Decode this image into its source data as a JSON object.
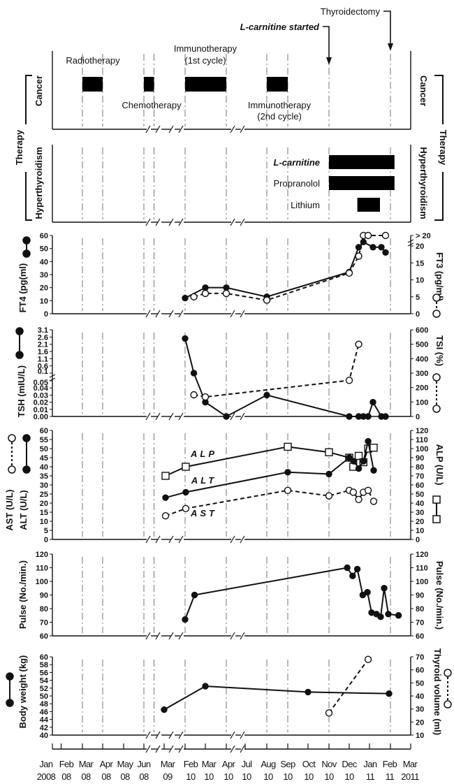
{
  "chart_data": {
    "type": "line",
    "x_axis": {
      "ticks": [
        {
          "key": "2008-01",
          "line1": "Jan",
          "line2": "2008"
        },
        {
          "key": "2008-02",
          "line1": "Feb",
          "line2": "08"
        },
        {
          "key": "2008-03",
          "line1": "Mar",
          "line2": "08"
        },
        {
          "key": "2008-04",
          "line1": "Apr",
          "line2": "08"
        },
        {
          "key": "2008-05",
          "line1": "May",
          "line2": "08"
        },
        {
          "key": "2008-06",
          "line1": "Jun",
          "line2": "08"
        },
        {
          "key": "2009-03",
          "line1": "Mar",
          "line2": "09"
        },
        {
          "key": "2010-02",
          "line1": "Feb",
          "line2": "10"
        },
        {
          "key": "2010-03",
          "line1": "Mar",
          "line2": "10"
        },
        {
          "key": "2010-04",
          "line1": "Apr",
          "line2": "10"
        },
        {
          "key": "2010-07",
          "line1": "Jul",
          "line2": "10"
        },
        {
          "key": "2010-08",
          "line1": "Aug",
          "line2": "10"
        },
        {
          "key": "2010-09",
          "line1": "Sep",
          "line2": "10"
        },
        {
          "key": "2010-10",
          "line1": "Oct",
          "line2": "10"
        },
        {
          "key": "2010-11",
          "line1": "Nov",
          "line2": "10"
        },
        {
          "key": "2010-12",
          "line1": "Dec",
          "line2": "10"
        },
        {
          "key": "2011-01",
          "line1": "Jan",
          "line2": "11"
        },
        {
          "key": "2011-02",
          "line1": "Feb",
          "line2": "11"
        },
        {
          "key": "2011-03",
          "line1": "Mar",
          "line2": "2011"
        }
      ],
      "axis_breaks": [
        "between Jun 08 and Mar 09",
        "between Mar 09 and Feb 10",
        "between Apr 10 and Jul 10"
      ]
    },
    "reference_dates": [
      "2008-03-01",
      "2008-04-01",
      "2008-06-01",
      "2008-06-16",
      "2010-02-01",
      "2010-04-01",
      "2010-08-01",
      "2010-09-01",
      "2010-11-01",
      "2011-02-01"
    ],
    "events": [
      {
        "label": "L-carnitine started",
        "date": "2010-11-01"
      },
      {
        "label": "Thyroidectomy",
        "date": "2011-02-01"
      }
    ],
    "therapy": {
      "group_label": "Therapy",
      "cancer": {
        "label": "Cancer",
        "bars": [
          {
            "label": "Radiotherapy",
            "start": "2008-03-01",
            "end": "2008-04-01"
          },
          {
            "label": "Chemotherapy",
            "start": "2008-06-01",
            "end": "2008-06-16"
          },
          {
            "label": "Immunotherapy",
            "label2": "(1st cycle)",
            "start": "2010-02-01",
            "end": "2010-04-01"
          },
          {
            "label": "Immunotherapy",
            "label2": "(2nd cycle)",
            "start": "2010-08-01",
            "end": "2010-09-01"
          }
        ]
      },
      "hyperthyroidism": {
        "label": "Hyperthyroidism",
        "bars": [
          {
            "label": "L-carnitine",
            "start": "2010-11-01",
            "end": "2011-02-07"
          },
          {
            "label": "Propranolol",
            "start": "2010-11-01",
            "end": "2011-02-07"
          },
          {
            "label": "Lithium",
            "start": "2010-12-13",
            "end": "2011-01-16"
          }
        ]
      }
    },
    "panels": [
      {
        "id": "ft4",
        "left_label": "FT4 (pg(ml)",
        "right_label": "FT3 (pg/ml)",
        "left_ticks": [
          "0",
          "10",
          "20",
          "30",
          "40",
          "50",
          "60"
        ],
        "right_ticks": [
          "0",
          "5",
          "10",
          "15",
          "20",
          "> 20"
        ],
        "ylim_left": [
          0,
          60
        ],
        "ylim_right": [
          0,
          20
        ],
        "series": [
          {
            "axis": "left",
            "style": "solid-filled",
            "points": [
              [
                "2010-02-01",
                12
              ],
              [
                "2010-03-01",
                20
              ],
              [
                "2010-04-01",
                20
              ],
              [
                "2010-08-01",
                13
              ],
              [
                "2010-12-01",
                32
              ],
              [
                "2010-12-15",
                51
              ],
              [
                "2010-12-22",
                55
              ],
              [
                "2011-01-06",
                51
              ],
              [
                "2011-01-18",
                51
              ],
              [
                "2011-01-24",
                47
              ]
            ]
          },
          {
            "axis": "right",
            "style": "dashed-open",
            "points": [
              [
                "2010-02-14",
                5
              ],
              [
                "2010-03-01",
                6
              ],
              [
                "2010-04-01",
                6
              ],
              [
                "2010-08-01",
                4
              ],
              [
                "2010-12-01",
                12
              ],
              [
                "2010-12-15",
                17
              ],
              [
                "2010-12-22",
                "> 20"
              ],
              [
                "2010-12-29",
                "> 20"
              ],
              [
                "2011-01-24",
                "> 20"
              ]
            ]
          }
        ]
      },
      {
        "id": "tsh",
        "left_label": "TSH (mIU/L)",
        "right_label": "TSI (%)",
        "left_ticks": [
          "0.00",
          "0.01",
          "0.02",
          "0.03",
          "0.04",
          "0.05",
          "0.1",
          "0.6",
          "1.1",
          "1.6",
          "2.1",
          "2.6",
          "3.1"
        ],
        "right_ticks": [
          "0",
          "100",
          "200",
          "300",
          "400",
          "500",
          "600"
        ],
        "ylim_left": [
          0,
          3.1
        ],
        "left_axis_break": [
          0.05,
          0.1
        ],
        "ylim_right": [
          0,
          600
        ],
        "series": [
          {
            "axis": "left",
            "style": "solid-filled",
            "points": [
              [
                "2010-02-01",
                2.5
              ],
              [
                "2010-02-14",
                0.1
              ],
              [
                "2010-03-01",
                0.02
              ],
              [
                "2010-04-01",
                0
              ],
              [
                "2010-08-01",
                0.03
              ],
              [
                "2010-12-01",
                0
              ],
              [
                "2010-12-15",
                0
              ],
              [
                "2010-12-22",
                0
              ],
              [
                "2010-12-29",
                0
              ],
              [
                "2011-01-06",
                0.02
              ],
              [
                "2011-01-18",
                0
              ],
              [
                "2011-01-24",
                0
              ]
            ]
          },
          {
            "axis": "right",
            "style": "dashed-open",
            "points": [
              [
                "2010-02-14",
                150
              ],
              [
                "2010-03-01",
                135
              ],
              [
                "2010-12-01",
                250
              ],
              [
                "2010-12-15",
                500
              ]
            ]
          }
        ]
      },
      {
        "id": "liver",
        "left_label": "ALT  (U/L)",
        "left_label2": "AST  (U/L)",
        "right_label": "ALP (U/L)",
        "left_ticks": [
          "0",
          "5",
          "10",
          "15",
          "20",
          "25",
          "30",
          "35",
          "40",
          "45",
          "50",
          "55",
          "60"
        ],
        "right_ticks": [
          "0",
          "10",
          "20",
          "30",
          "40",
          "50",
          "60",
          "70",
          "80",
          "90",
          "100",
          "110",
          "120"
        ],
        "ylim_left": [
          0,
          60
        ],
        "ylim_right": [
          0,
          120
        ],
        "series": [
          {
            "name": "ALP",
            "axis": "right",
            "style": "solid-square",
            "points": [
              [
                "2009-03-03",
                70
              ],
              [
                "2010-02-02",
                80
              ],
              [
                "2010-09-01",
                102
              ],
              [
                "2010-11-01",
                96
              ],
              [
                "2010-12-01",
                90
              ],
              [
                "2010-12-07",
                80
              ],
              [
                "2010-12-15",
                92
              ],
              [
                "2010-12-22",
                85
              ],
              [
                "2010-12-29",
                100
              ],
              [
                "2011-01-07",
                101
              ]
            ]
          },
          {
            "name": "ALT",
            "axis": "left",
            "style": "solid-filled",
            "points": [
              [
                "2009-03-03",
                23
              ],
              [
                "2010-02-02",
                26
              ],
              [
                "2010-09-01",
                37
              ],
              [
                "2010-11-01",
                36
              ],
              [
                "2010-12-01",
                45
              ],
              [
                "2010-12-08",
                43
              ],
              [
                "2010-12-15",
                39
              ],
              [
                "2010-12-22",
                43
              ],
              [
                "2010-12-29",
                54
              ],
              [
                "2011-01-07",
                38
              ]
            ]
          },
          {
            "name": "AST",
            "axis": "left",
            "style": "dashed-open",
            "points": [
              [
                "2009-03-03",
                13
              ],
              [
                "2010-02-02",
                17
              ],
              [
                "2010-09-01",
                27
              ],
              [
                "2010-11-01",
                24
              ],
              [
                "2010-12-01",
                27
              ],
              [
                "2010-12-07",
                26
              ],
              [
                "2010-12-15",
                22
              ],
              [
                "2010-12-22",
                26
              ],
              [
                "2010-12-29",
                27
              ],
              [
                "2011-01-07",
                21
              ]
            ]
          }
        ]
      },
      {
        "id": "pulse",
        "left_label": "Pulse (No./min.)",
        "right_label": "Pulse (No./min.)",
        "left_ticks": [
          "60",
          "70",
          "80",
          "90",
          "100",
          "110",
          "120"
        ],
        "right_ticks": [
          "60",
          "70",
          "80",
          "90",
          "100",
          "110",
          "120"
        ],
        "ylim_left": [
          60,
          120
        ],
        "ylim_right": [
          60,
          120
        ],
        "series": [
          {
            "axis": "left",
            "style": "solid-filled",
            "points": [
              [
                "2010-02-01",
                72
              ],
              [
                "2010-02-15",
                90
              ],
              [
                "2010-11-28",
                110
              ],
              [
                "2010-12-06",
                104
              ],
              [
                "2010-12-13",
                109
              ],
              [
                "2010-12-21",
                90
              ],
              [
                "2010-12-28",
                92
              ],
              [
                "2011-01-04",
                77
              ],
              [
                "2011-01-11",
                76
              ],
              [
                "2011-01-17",
                74
              ],
              [
                "2011-01-22",
                95
              ],
              [
                "2011-01-28",
                76
              ],
              [
                "2011-02-13",
                75
              ]
            ]
          }
        ]
      },
      {
        "id": "weight",
        "left_label": "Body weight (kg)",
        "right_label": "Thyroid volume (ml)",
        "left_ticks": [
          "40",
          "42",
          "44",
          "46",
          "48",
          "50",
          "52",
          "54",
          "56",
          "58",
          "60"
        ],
        "right_ticks": [
          "10",
          "20",
          "30",
          "40",
          "50",
          "60",
          "70"
        ],
        "ylim_left": [
          40,
          60
        ],
        "ylim_right": [
          10,
          70
        ],
        "series": [
          {
            "axis": "left",
            "style": "solid-filled",
            "points": [
              [
                "2009-03-01",
                46.5
              ],
              [
                "2010-03-01",
                52.5
              ],
              [
                "2010-10-01",
                51
              ],
              [
                "2011-01-29",
                50.6
              ]
            ]
          },
          {
            "axis": "right",
            "style": "dashed-open",
            "points": [
              [
                "2010-11-01",
                27
              ],
              [
                "2010-12-29",
                68
              ]
            ]
          }
        ]
      }
    ]
  }
}
